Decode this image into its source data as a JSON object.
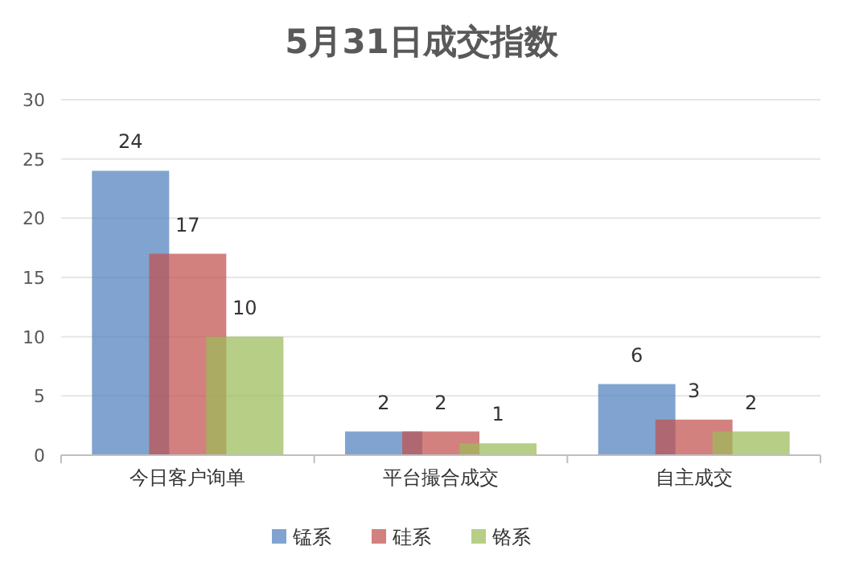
{
  "chart_data": {
    "type": "bar",
    "title": "5月31日成交指数",
    "categories": [
      "今日客户询单",
      "平台撮合成交",
      "自主成交"
    ],
    "series": [
      {
        "name": "锰系",
        "color": "#4f81bd",
        "values": [
          24,
          2,
          6
        ]
      },
      {
        "name": "硅系",
        "color": "#c0504d",
        "values": [
          17,
          2,
          3
        ]
      },
      {
        "name": "铬系",
        "color": "#9bbb59",
        "values": [
          10,
          1,
          2
        ]
      }
    ],
    "ylim": [
      0,
      30
    ],
    "yticks": [
      0,
      5,
      10,
      15,
      20,
      25,
      30
    ],
    "grid": "y",
    "legend": "bottom",
    "data_labels": true
  }
}
